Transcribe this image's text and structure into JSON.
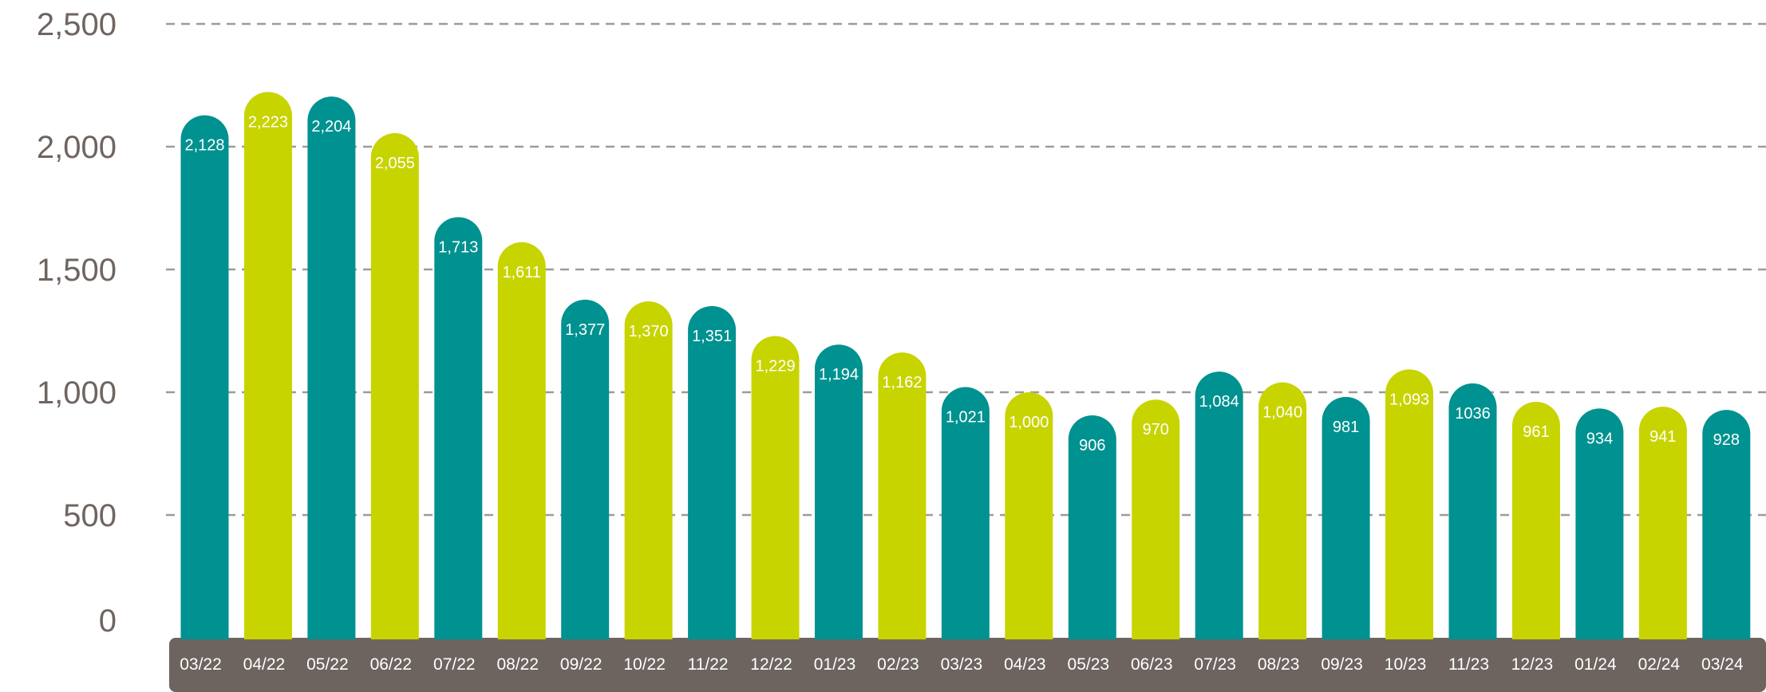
{
  "chart_data": {
    "type": "bar",
    "title": "",
    "xlabel": "",
    "ylabel": "",
    "ylim": [
      0,
      2500
    ],
    "yticks": [
      "0",
      "500",
      "1,000",
      "1,500",
      "2,000",
      "2,500"
    ],
    "ytick_values": [
      0,
      500,
      1000,
      1500,
      2000,
      2500
    ],
    "grid": true,
    "categories": [
      "03/22",
      "04/22",
      "05/22",
      "06/22",
      "07/22",
      "08/22",
      "09/22",
      "10/22",
      "11/22",
      "12/22",
      "01/23",
      "02/23",
      "03/23",
      "04/23",
      "05/23",
      "06/23",
      "07/23",
      "08/23",
      "09/23",
      "10/23",
      "11/23",
      "12/23",
      "01/24",
      "02/24",
      "03/24"
    ],
    "values": [
      2128,
      2223,
      2204,
      2055,
      1713,
      1611,
      1377,
      1370,
      1351,
      1229,
      1194,
      1162,
      1021,
      1000,
      906,
      970,
      1084,
      1040,
      981,
      1093,
      1036,
      961,
      934,
      941,
      928
    ],
    "labels": [
      "2,128",
      "2,223",
      "2,204",
      "2,055",
      "1,713",
      "1,611",
      "1,377",
      "1,370",
      "1,351",
      "1,229",
      "1,194",
      "1,162",
      "1,021",
      "1,000",
      "906",
      "970",
      "1,084",
      "1,040",
      "981",
      "1,093",
      "1036",
      "961",
      "934",
      "941",
      "928"
    ],
    "colors": {
      "teal": "#009290",
      "lime": "#c8d400",
      "axis_band": "#6d6460",
      "grid": "#a09a96",
      "ytick_text": "#6f6560"
    }
  }
}
